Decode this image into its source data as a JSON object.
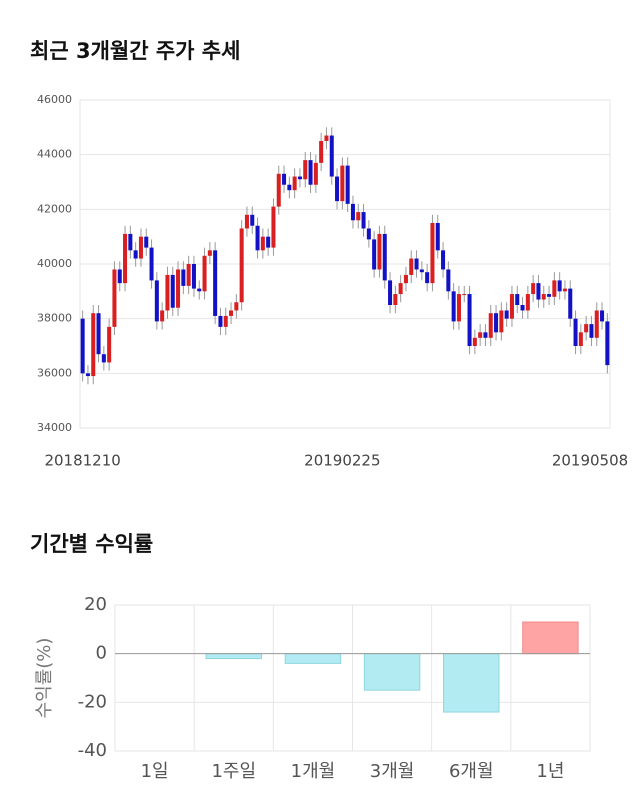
{
  "chart_data": [
    {
      "type": "candlestick",
      "title": "최근 3개월간 주가 추세",
      "categories": [
        "20181210",
        null,
        null,
        null,
        null,
        null,
        null,
        null,
        null,
        null,
        null,
        null,
        null,
        null,
        null,
        null,
        null,
        null,
        null,
        null,
        null,
        null,
        null,
        null,
        null,
        null,
        null,
        null,
        null,
        null,
        null,
        null,
        null,
        null,
        null,
        null,
        null,
        null,
        null,
        null,
        null,
        null,
        null,
        null,
        null,
        null,
        null,
        null,
        null,
        "20190225",
        null,
        null,
        null,
        null,
        null,
        null,
        null,
        null,
        null,
        null,
        null,
        null,
        null,
        null,
        null,
        null,
        null,
        null,
        null,
        null,
        null,
        null,
        null,
        null,
        null,
        null,
        null,
        null,
        null,
        null,
        null,
        null,
        null,
        null,
        null,
        null,
        null,
        null,
        null,
        null,
        null,
        null,
        null,
        null,
        null,
        null,
        null,
        null,
        null,
        "20190508"
      ],
      "open": [
        38000,
        36000,
        35900,
        38200,
        36700,
        36400,
        37700,
        39800,
        39300,
        41100,
        40500,
        40200,
        41000,
        40600,
        39400,
        37900,
        38300,
        39600,
        38400,
        39800,
        39200,
        40000,
        39100,
        39000,
        40300,
        40500,
        38100,
        37700,
        38100,
        38300,
        38600,
        41300,
        41800,
        41400,
        40500,
        41000,
        40600,
        42100,
        43300,
        42900,
        42700,
        43200,
        43100,
        43800,
        42900,
        43700,
        44500,
        44700,
        43200,
        42300,
        43600,
        42200,
        41600,
        41900,
        41300,
        40900,
        39800,
        41100,
        39400,
        38500,
        38900,
        39300,
        39600,
        40200,
        39800,
        39700,
        39300,
        41500,
        40500,
        39800,
        39000,
        37900,
        38900,
        38900,
        37000,
        37300,
        37500,
        37300,
        38200,
        37500,
        38300,
        38000,
        38900,
        38500,
        38300,
        38900,
        39300,
        38700,
        38900,
        38800,
        39400,
        39000,
        39100,
        38000,
        37000,
        37500,
        37800,
        37300,
        38300,
        37900
      ],
      "high": [
        38300,
        36300,
        38500,
        38500,
        37000,
        38000,
        40100,
        40100,
        41400,
        41400,
        40800,
        41300,
        41300,
        40900,
        39700,
        38600,
        39900,
        39900,
        40100,
        40100,
        40300,
        40300,
        39400,
        40600,
        40800,
        40800,
        38400,
        38400,
        38600,
        38900,
        41600,
        42100,
        42100,
        41700,
        41300,
        41300,
        42400,
        43600,
        43600,
        43200,
        43500,
        43500,
        44100,
        44100,
        44000,
        44800,
        45000,
        45000,
        43500,
        43900,
        43900,
        42500,
        42200,
        42200,
        41600,
        41200,
        41400,
        41400,
        39700,
        39200,
        39600,
        39900,
        40500,
        40500,
        40100,
        40000,
        41800,
        41800,
        40800,
        40100,
        39300,
        39200,
        39200,
        39200,
        37600,
        37800,
        37800,
        38500,
        38500,
        38600,
        38600,
        39200,
        39200,
        38800,
        39200,
        39600,
        39600,
        39200,
        39200,
        39700,
        39700,
        39400,
        39400,
        38300,
        37800,
        38100,
        38100,
        38600,
        38600,
        38200
      ],
      "low": [
        35700,
        35600,
        35600,
        36400,
        36100,
        36100,
        37400,
        39000,
        39000,
        40200,
        39900,
        39900,
        40300,
        39100,
        37600,
        37600,
        38000,
        38100,
        38100,
        38900,
        38900,
        38800,
        38700,
        38700,
        40000,
        37800,
        37400,
        37400,
        37800,
        38000,
        38300,
        41000,
        41100,
        40200,
        40200,
        40300,
        40300,
        41800,
        42600,
        42400,
        42400,
        42800,
        42800,
        42600,
        42600,
        43400,
        44200,
        42900,
        42000,
        42000,
        41900,
        41300,
        41300,
        41000,
        40600,
        39500,
        39500,
        39100,
        38200,
        38200,
        38600,
        39000,
        39300,
        39500,
        39400,
        39000,
        39000,
        40200,
        39500,
        38700,
        37600,
        37600,
        38600,
        36700,
        36700,
        37000,
        37000,
        37000,
        37200,
        37200,
        37700,
        37700,
        38200,
        38000,
        38000,
        38600,
        38400,
        38400,
        38500,
        38500,
        38700,
        38700,
        37700,
        36700,
        36700,
        37200,
        37000,
        37000,
        37600,
        36000
      ],
      "close": [
        36000,
        35900,
        38200,
        36700,
        36400,
        37700,
        39800,
        39300,
        41100,
        40500,
        40200,
        41000,
        40600,
        39400,
        37900,
        38300,
        39600,
        38400,
        39800,
        39200,
        40000,
        39100,
        39000,
        40300,
        40500,
        38100,
        37700,
        38100,
        38300,
        38600,
        41300,
        41800,
        41400,
        40500,
        41000,
        40600,
        42100,
        43300,
        42900,
        42700,
        43200,
        43100,
        43800,
        42900,
        43700,
        44500,
        44700,
        43200,
        42300,
        43600,
        42200,
        41600,
        41900,
        41300,
        40900,
        39800,
        41100,
        39400,
        38500,
        38900,
        39300,
        39600,
        40200,
        39800,
        39700,
        39300,
        41500,
        40500,
        39800,
        39000,
        37900,
        38900,
        38900,
        37000,
        37300,
        37500,
        37300,
        38200,
        37500,
        38300,
        38000,
        38900,
        38500,
        38300,
        38900,
        39300,
        38700,
        38900,
        38800,
        39400,
        39000,
        39100,
        38000,
        37000,
        37500,
        37800,
        37300,
        38300,
        37900,
        36300
      ],
      "ylim": [
        34000,
        46000
      ],
      "yticks": [
        34000,
        36000,
        38000,
        40000,
        42000,
        44000,
        46000
      ],
      "grid": true,
      "up_color": "#d91f1f",
      "down_color": "#1212c4",
      "wick_color": "#999999"
    },
    {
      "type": "bar",
      "title": "기간별 수익률",
      "ylabel": "수익률(%)",
      "categories": [
        "1일",
        "1주일",
        "1개월",
        "3개월",
        "6개월",
        "1년"
      ],
      "values": [
        0,
        -2,
        -4,
        -15,
        -24,
        13
      ],
      "colors": [
        "#b3ebf2",
        "#b3ebf2",
        "#b3ebf2",
        "#b3ebf2",
        "#b3ebf2",
        "#ffa4a4"
      ],
      "ylim": [
        -40,
        20
      ],
      "yticks": [
        -40,
        -20,
        0,
        20
      ],
      "grid": true
    }
  ]
}
